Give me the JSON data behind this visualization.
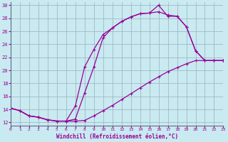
{
  "bg_color": "#c8eaf0",
  "line_color": "#990099",
  "grid_color": "#9ab0be",
  "xlabel": "Windchill (Refroidissement éolien,°C)",
  "xlim": [
    0,
    23
  ],
  "ylim": [
    11.5,
    30.5
  ],
  "xticks": [
    0,
    1,
    2,
    3,
    4,
    5,
    6,
    7,
    8,
    9,
    10,
    11,
    12,
    13,
    14,
    15,
    16,
    17,
    18,
    19,
    20,
    21,
    22,
    23
  ],
  "yticks": [
    12,
    14,
    16,
    18,
    20,
    22,
    24,
    26,
    28,
    30
  ],
  "curve1_x": [
    0,
    1,
    2,
    3,
    4,
    5,
    6,
    7,
    8,
    9,
    10,
    11,
    12,
    13,
    14,
    15,
    16,
    17,
    18,
    19,
    20,
    21,
    22,
    23
  ],
  "curve1_y": [
    14.2,
    13.8,
    13.0,
    12.8,
    12.4,
    12.2,
    12.2,
    12.5,
    16.5,
    20.5,
    25.0,
    26.5,
    27.5,
    28.2,
    28.7,
    28.8,
    30.0,
    28.3,
    28.3,
    26.7,
    23.0,
    21.5,
    21.5,
    21.5
  ],
  "curve2_x": [
    0,
    1,
    2,
    3,
    4,
    5,
    6,
    7,
    8,
    9,
    10,
    11,
    12,
    13,
    14,
    15,
    16,
    17,
    18,
    19,
    20,
    21,
    22,
    23
  ],
  "curve2_y": [
    14.2,
    13.8,
    13.0,
    12.8,
    12.4,
    12.2,
    12.2,
    12.2,
    12.3,
    13.0,
    13.8,
    14.6,
    15.5,
    16.4,
    17.3,
    18.2,
    19.0,
    19.8,
    20.4,
    21.0,
    21.5,
    21.5,
    21.5,
    21.5
  ],
  "curve3_x": [
    0,
    1,
    2,
    3,
    4,
    5,
    6,
    7,
    8,
    9,
    10,
    11,
    12,
    13,
    14,
    15,
    16,
    17,
    18,
    19,
    20,
    21,
    22,
    23
  ],
  "curve3_y": [
    14.2,
    13.8,
    13.0,
    12.8,
    12.4,
    12.2,
    12.2,
    14.5,
    20.5,
    23.2,
    25.5,
    26.5,
    27.5,
    28.2,
    28.7,
    28.8,
    29.0,
    28.5,
    28.3,
    26.7,
    23.0,
    21.5,
    21.5,
    21.5
  ]
}
